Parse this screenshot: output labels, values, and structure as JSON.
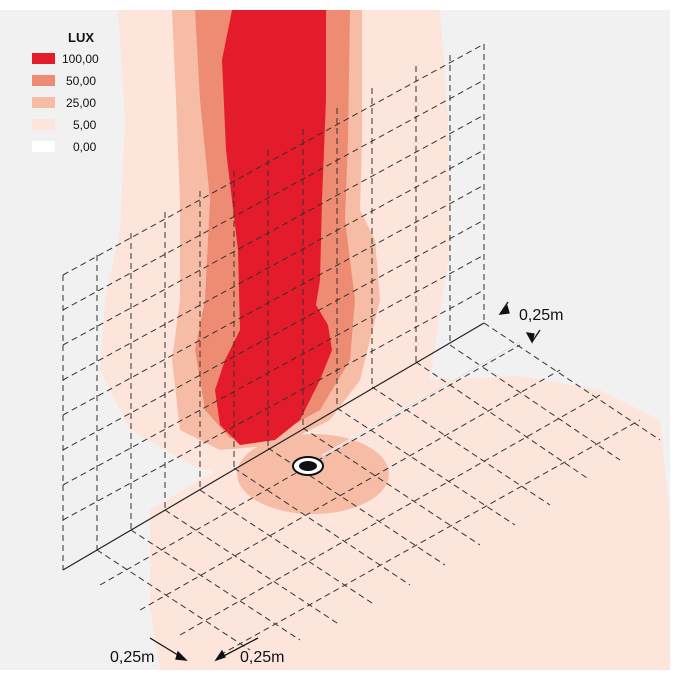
{
  "legend": {
    "title": "LUX",
    "items": [
      {
        "label": "100,00",
        "color": "#e31b2a"
      },
      {
        "label": "50,00",
        "color": "#ee8c73"
      },
      {
        "label": "25,00",
        "color": "#f6bca6"
      },
      {
        "label": "5,00",
        "color": "#fde5dc"
      },
      {
        "label": "0,00",
        "color": "#ffffff"
      }
    ]
  },
  "dimensions": {
    "top_right": "0,25m",
    "bottom_left": "0,25m",
    "bottom_right": "0,25m"
  },
  "colors": {
    "background": "#f1f1f1",
    "lux_100": "#e31b2a",
    "lux_50": "#ee8c73",
    "lux_25": "#f6bca6",
    "lux_5": "#fde5dc",
    "lux_0": "#ffffff"
  }
}
